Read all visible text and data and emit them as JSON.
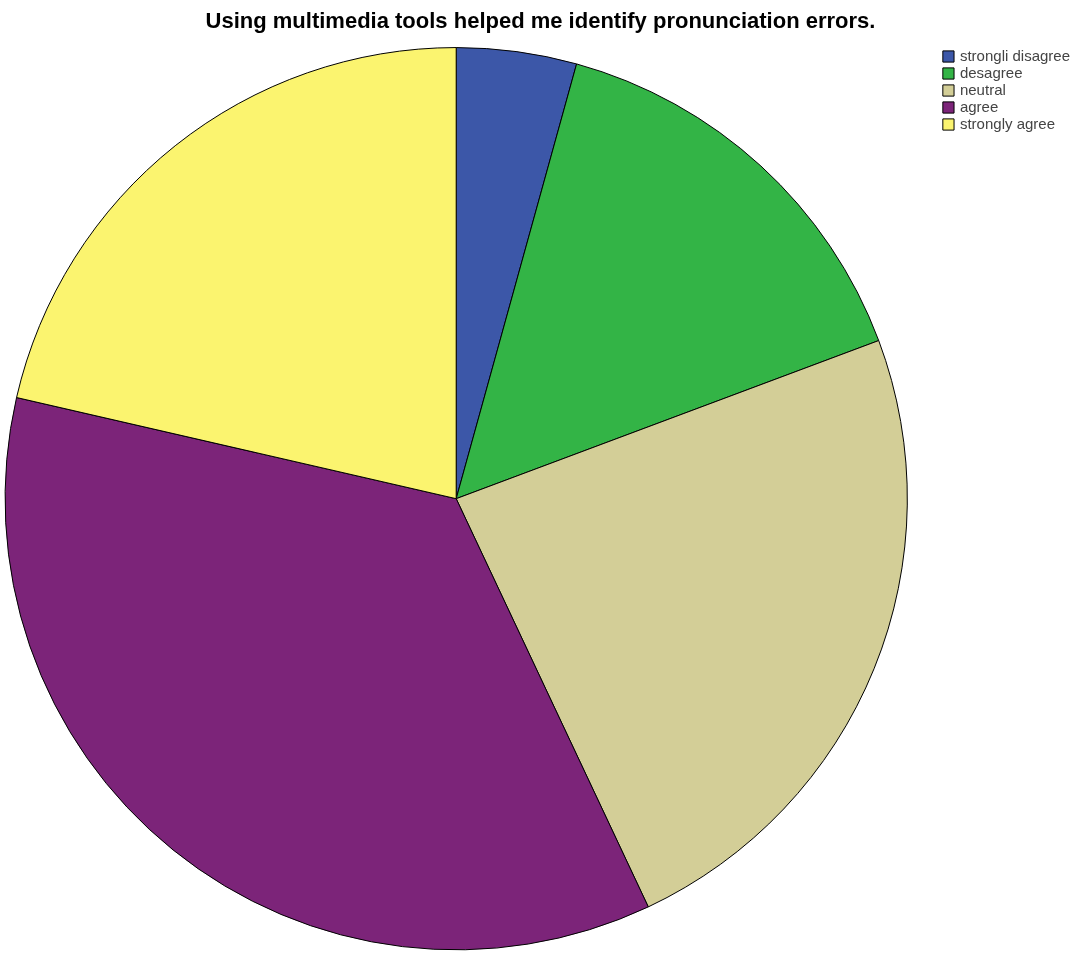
{
  "chart_data": {
    "type": "pie",
    "title": "Using multimedia tools helped me identify pronunciation errors.",
    "categories": [
      "strongli disagree",
      "desagree",
      "neutral",
      "agree",
      "strongly agree"
    ],
    "values": [
      4.3,
      15.0,
      23.7,
      35.6,
      21.4
    ],
    "colors": [
      "#3c57a8",
      "#33b446",
      "#d3ce97",
      "#7c2479",
      "#fbf46f"
    ],
    "legend": "top right"
  }
}
